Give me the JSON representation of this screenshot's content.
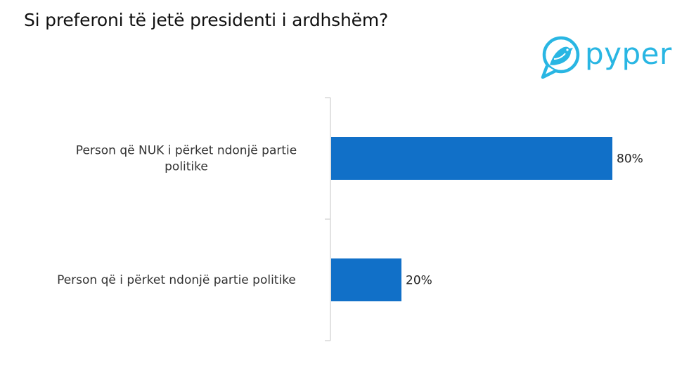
{
  "title": "Si preferoni të jetë presidenti i ardhshëm?",
  "logo": {
    "text": "pyper",
    "color": "#29b6e3",
    "icon": "bird-in-speech-bubble-icon"
  },
  "chart_data": {
    "type": "bar",
    "orientation": "horizontal",
    "title": "Si preferoni të jetë presidenti i ardhshëm?",
    "categories": [
      "Person që NUK i përket ndonjë partie politike",
      "Person që i përket ndonjë partie politike"
    ],
    "category_lines": [
      [
        "Person që NUK i përket ndonjë partie",
        "politike"
      ],
      [
        "Person që i përket ndonjë partie politike"
      ]
    ],
    "values": [
      80,
      20
    ],
    "value_labels": [
      "80%",
      "20%"
    ],
    "xlim": [
      0,
      100
    ],
    "xlabel": "",
    "ylabel": "",
    "grid": false,
    "legend": "none",
    "bar_color": "#1170c8",
    "axis_color": "#d9d9d9"
  }
}
